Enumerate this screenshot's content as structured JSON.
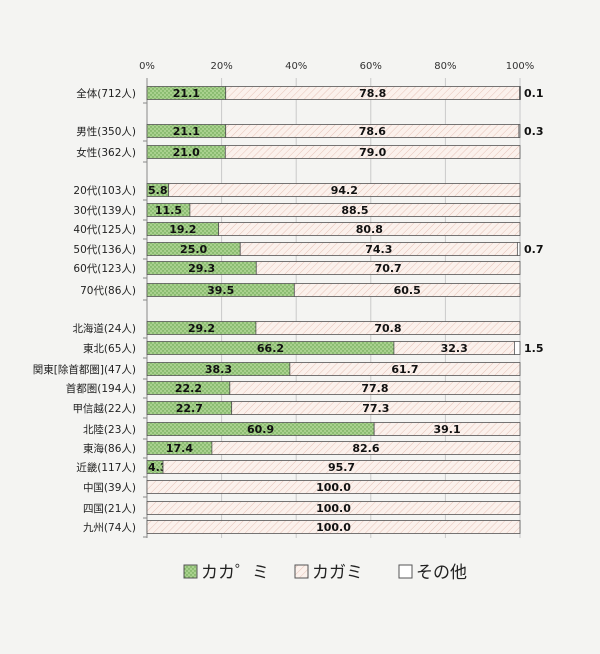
{
  "chart_data": {
    "type": "bar",
    "orientation": "horizontal",
    "stacked": true,
    "xlim": [
      0,
      100
    ],
    "x_ticks": [
      "0%",
      "20%",
      "40%",
      "60%",
      "80%",
      "100%"
    ],
    "grid": true,
    "legend_position": "bottom",
    "series": [
      {
        "name": "カカ゜ミ",
        "color": "#a9d18e",
        "pattern": "dots"
      },
      {
        "name": "カガミ",
        "color": "#fbeee8",
        "pattern": "hatch"
      },
      {
        "name": "その他",
        "color": "#ffffff",
        "pattern": "none"
      }
    ],
    "rows": [
      {
        "label": "全体(712人)",
        "values": [
          21.1,
          78.8,
          0.1
        ],
        "labels": [
          "21.1",
          "78.8",
          "0.1"
        ]
      },
      {
        "label": "男性(350人)",
        "values": [
          21.1,
          78.6,
          0.3
        ],
        "labels": [
          "21.1",
          "78.6",
          "0.3"
        ]
      },
      {
        "label": "女性(362人)",
        "values": [
          21.0,
          79.0,
          0
        ],
        "labels": [
          "21.0",
          "79.0",
          ""
        ]
      },
      {
        "label": "20代(103人)",
        "values": [
          5.8,
          94.2,
          0
        ],
        "labels": [
          "5.8",
          "94.2",
          ""
        ]
      },
      {
        "label": "30代(139人)",
        "values": [
          11.5,
          88.5,
          0
        ],
        "labels": [
          "11.5",
          "88.5",
          ""
        ]
      },
      {
        "label": "40代(125人)",
        "values": [
          19.2,
          80.8,
          0
        ],
        "labels": [
          "19.2",
          "80.8",
          ""
        ]
      },
      {
        "label": "50代(136人)",
        "values": [
          25.0,
          74.3,
          0.7
        ],
        "labels": [
          "25.0",
          "74.3",
          "0.7"
        ]
      },
      {
        "label": "60代(123人)",
        "values": [
          29.3,
          70.7,
          0
        ],
        "labels": [
          "29.3",
          "70.7",
          ""
        ]
      },
      {
        "label": "70代(86人)",
        "values": [
          39.5,
          60.5,
          0
        ],
        "labels": [
          "39.5",
          "60.5",
          ""
        ]
      },
      {
        "label": "北海道(24人)",
        "values": [
          29.2,
          70.8,
          0
        ],
        "labels": [
          "29.2",
          "70.8",
          ""
        ]
      },
      {
        "label": "東北(65人)",
        "values": [
          66.2,
          32.3,
          1.5
        ],
        "labels": [
          "66.2",
          "32.3",
          "1.5"
        ]
      },
      {
        "label": "関東[除首都圏](47人)",
        "values": [
          38.3,
          61.7,
          0
        ],
        "labels": [
          "38.3",
          "61.7",
          ""
        ]
      },
      {
        "label": "首都圏(194人)",
        "values": [
          22.2,
          77.8,
          0
        ],
        "labels": [
          "22.2",
          "77.8",
          ""
        ]
      },
      {
        "label": "甲信越(22人)",
        "values": [
          22.7,
          77.3,
          0
        ],
        "labels": [
          "22.7",
          "77.3",
          ""
        ]
      },
      {
        "label": "北陸(23人)",
        "values": [
          60.9,
          39.1,
          0
        ],
        "labels": [
          "60.9",
          "39.1",
          ""
        ]
      },
      {
        "label": "東海(86人)",
        "values": [
          17.4,
          82.6,
          0
        ],
        "labels": [
          "17.4",
          "82.6",
          ""
        ]
      },
      {
        "label": "近畿(117人)",
        "values": [
          4.3,
          95.7,
          0
        ],
        "labels": [
          "4.3",
          "95.7",
          ""
        ]
      },
      {
        "label": "中国(39人)",
        "values": [
          0,
          100.0,
          0
        ],
        "labels": [
          "",
          "100.0",
          ""
        ]
      },
      {
        "label": "四国(21人)",
        "values": [
          0,
          100.0,
          0
        ],
        "labels": [
          "",
          "100.0",
          ""
        ]
      },
      {
        "label": "九州(74人)",
        "values": [
          0,
          100.0,
          0
        ],
        "labels": [
          "",
          "100.0",
          ""
        ]
      }
    ]
  }
}
